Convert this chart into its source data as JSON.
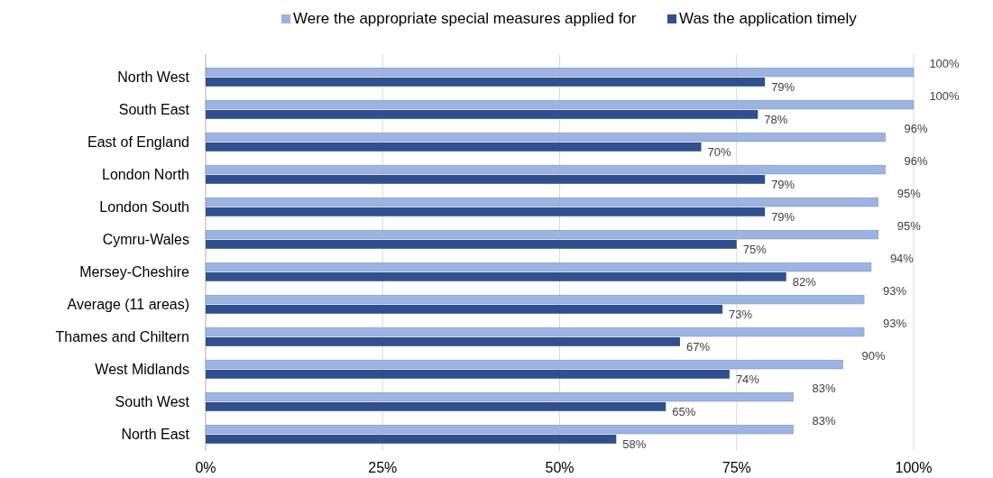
{
  "chart_data": {
    "type": "bar",
    "orientation": "horizontal",
    "categories": [
      "North West",
      "South East",
      "East of England",
      "London North",
      "London South",
      "Cymru-Wales",
      "Mersey-Cheshire",
      "Average (11 areas)",
      "Thames and Chiltern",
      "West Midlands",
      "South West",
      "North East"
    ],
    "series": [
      {
        "name": "Were the appropriate special measures applied for",
        "color": "#9db3e2",
        "values": [
          100,
          100,
          96,
          96,
          95,
          95,
          94,
          93,
          93,
          90,
          83,
          83
        ],
        "value_labels": [
          "100%",
          "100%",
          "96%",
          "96%",
          "95%",
          "95%",
          "94%",
          "93%",
          "93%",
          "90%",
          "83%",
          "83%"
        ]
      },
      {
        "name": "Was the application timely",
        "color": "#2f4f8f",
        "values": [
          79,
          78,
          70,
          79,
          79,
          75,
          82,
          73,
          67,
          74,
          65,
          58
        ],
        "value_labels": [
          "79%",
          "78%",
          "70%",
          "79%",
          "79%",
          "75%",
          "82%",
          "73%",
          "67%",
          "74%",
          "65%",
          "58%"
        ]
      }
    ],
    "xlim": [
      0,
      100
    ],
    "xticks": [
      {
        "value": 0,
        "label": "0%"
      },
      {
        "value": 25,
        "label": "25%"
      },
      {
        "value": 50,
        "label": "50%"
      },
      {
        "value": 75,
        "label": "75%"
      },
      {
        "value": 100,
        "label": "100%"
      }
    ],
    "grid": "x",
    "legend": "top"
  }
}
